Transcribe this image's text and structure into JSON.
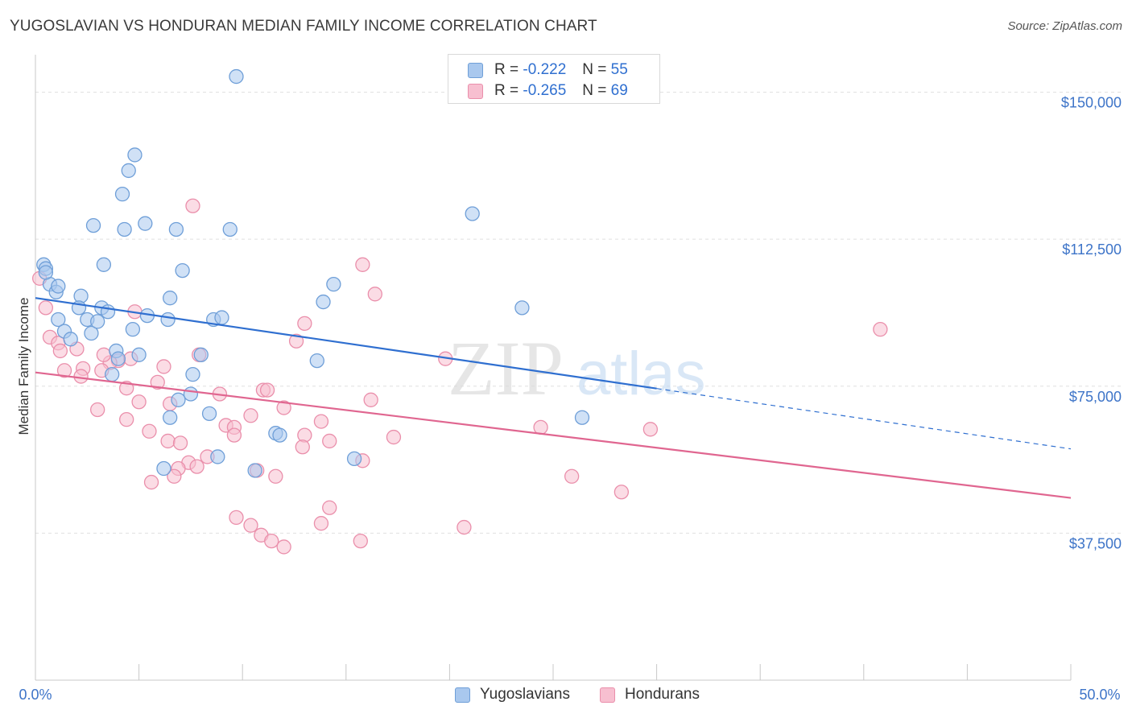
{
  "title": "YUGOSLAVIAN VS HONDURAN MEDIAN FAMILY INCOME CORRELATION CHART",
  "source": "Source: ZipAtlas.com",
  "watermark": {
    "zip": "ZIP",
    "atlas": "atlas"
  },
  "legend_top": [
    {
      "r_label": "R =",
      "r_value": "-0.222",
      "n_label": "N =",
      "n_value": "55"
    },
    {
      "r_label": "R =",
      "r_value": "-0.265",
      "n_label": "N =",
      "n_value": "69"
    }
  ],
  "legend_bottom": [
    {
      "label": "Yugoslavians"
    },
    {
      "label": "Hondurans"
    }
  ],
  "colors": {
    "yugo_fill": "#a9c8ee",
    "yugo_stroke": "#6f9fd8",
    "yugo_line": "#2f6fd0",
    "hond_fill": "#f7bfd0",
    "hond_stroke": "#ea8fab",
    "hond_line": "#e06690",
    "tick_text": "#3d74c8",
    "grid": "#e0e0e0"
  },
  "chart_data": {
    "type": "scatter",
    "title": "YUGOSLAVIAN VS HONDURAN MEDIAN FAMILY INCOME CORRELATION CHART",
    "xlabel": "",
    "ylabel": "Median Family Income",
    "xlim": [
      0,
      50
    ],
    "ylim": [
      0,
      157500
    ],
    "x_tick_labels": [
      "0.0%",
      "50.0%"
    ],
    "y_ticks": [
      37500,
      75000,
      112500,
      150000
    ],
    "y_tick_labels": [
      "$37,500",
      "$75,000",
      "$112,500",
      "$150,000"
    ],
    "legend_position": "top-center",
    "grid": true,
    "series": [
      {
        "name": "Yugoslavians",
        "r": -0.222,
        "n": 55,
        "trend": {
          "x0": 0,
          "y0": 97500,
          "x_solid_end": 30,
          "x1": 50,
          "y1": 59000
        },
        "points": [
          [
            9.7,
            154000
          ],
          [
            4.8,
            134000
          ],
          [
            4.5,
            130000
          ],
          [
            4.2,
            124000
          ],
          [
            21.1,
            119000
          ],
          [
            2.8,
            116000
          ],
          [
            5.3,
            116500
          ],
          [
            4.3,
            115000
          ],
          [
            6.8,
            115000
          ],
          [
            9.4,
            115000
          ],
          [
            0.4,
            106000
          ],
          [
            0.5,
            105000
          ],
          [
            3.3,
            106000
          ],
          [
            7.1,
            104500
          ],
          [
            0.7,
            101000
          ],
          [
            14.4,
            101000
          ],
          [
            1.0,
            99000
          ],
          [
            2.2,
            98000
          ],
          [
            6.5,
            97500
          ],
          [
            13.9,
            96500
          ],
          [
            2.1,
            95000
          ],
          [
            3.2,
            95000
          ],
          [
            3.5,
            94000
          ],
          [
            23.5,
            95000
          ],
          [
            5.4,
            93000
          ],
          [
            6.4,
            92000
          ],
          [
            8.6,
            92000
          ],
          [
            9.0,
            92500
          ],
          [
            1.1,
            92000
          ],
          [
            2.5,
            92000
          ],
          [
            1.4,
            89000
          ],
          [
            2.7,
            88500
          ],
          [
            4.7,
            89500
          ],
          [
            1.7,
            87000
          ],
          [
            3.9,
            84000
          ],
          [
            5.0,
            83000
          ],
          [
            8.0,
            83000
          ],
          [
            13.6,
            81500
          ],
          [
            3.7,
            78000
          ],
          [
            7.6,
            78000
          ],
          [
            7.5,
            73000
          ],
          [
            6.9,
            71500
          ],
          [
            8.4,
            68000
          ],
          [
            6.5,
            67000
          ],
          [
            26.4,
            67000
          ],
          [
            11.6,
            63000
          ],
          [
            11.8,
            62500
          ],
          [
            8.8,
            57000
          ],
          [
            15.4,
            56500
          ],
          [
            6.2,
            54000
          ],
          [
            10.6,
            53500
          ],
          [
            0.5,
            104000
          ],
          [
            1.1,
            100500
          ],
          [
            3.0,
            91500
          ],
          [
            4.0,
            82000
          ]
        ]
      },
      {
        "name": "Hondurans",
        "r": -0.265,
        "n": 69,
        "trend": {
          "x0": 0,
          "y0": 78500,
          "x1": 50,
          "y1": 46500
        },
        "points": [
          [
            7.6,
            121000
          ],
          [
            15.8,
            106000
          ],
          [
            16.4,
            98500
          ],
          [
            0.5,
            95000
          ],
          [
            4.8,
            94000
          ],
          [
            13.0,
            91000
          ],
          [
            40.8,
            89500
          ],
          [
            0.7,
            87500
          ],
          [
            12.6,
            86500
          ],
          [
            1.1,
            86000
          ],
          [
            2.0,
            84500
          ],
          [
            1.2,
            84000
          ],
          [
            7.9,
            83000
          ],
          [
            4.0,
            81500
          ],
          [
            4.6,
            82000
          ],
          [
            3.6,
            81000
          ],
          [
            19.8,
            82000
          ],
          [
            6.2,
            80000
          ],
          [
            1.4,
            79000
          ],
          [
            2.3,
            79500
          ],
          [
            3.2,
            79000
          ],
          [
            2.2,
            77500
          ],
          [
            5.9,
            76000
          ],
          [
            4.4,
            74500
          ],
          [
            11.0,
            74000
          ],
          [
            11.2,
            74000
          ],
          [
            8.9,
            73000
          ],
          [
            16.2,
            71500
          ],
          [
            5.0,
            71000
          ],
          [
            6.5,
            70500
          ],
          [
            12.0,
            69500
          ],
          [
            3.0,
            69000
          ],
          [
            10.4,
            67500
          ],
          [
            4.4,
            66500
          ],
          [
            13.8,
            66000
          ],
          [
            9.2,
            65000
          ],
          [
            9.6,
            64500
          ],
          [
            24.4,
            64500
          ],
          [
            29.7,
            64000
          ],
          [
            5.5,
            63500
          ],
          [
            9.6,
            62500
          ],
          [
            13.0,
            62500
          ],
          [
            17.3,
            62000
          ],
          [
            6.4,
            61000
          ],
          [
            7.0,
            60500
          ],
          [
            14.2,
            61000
          ],
          [
            12.9,
            59500
          ],
          [
            8.3,
            57000
          ],
          [
            15.8,
            56000
          ],
          [
            7.4,
            55500
          ],
          [
            6.9,
            54000
          ],
          [
            7.8,
            54500
          ],
          [
            10.7,
            53500
          ],
          [
            25.9,
            52000
          ],
          [
            11.6,
            52000
          ],
          [
            5.6,
            50500
          ],
          [
            6.7,
            52000
          ],
          [
            28.3,
            48000
          ],
          [
            14.2,
            44000
          ],
          [
            9.7,
            41500
          ],
          [
            10.4,
            39500
          ],
          [
            13.8,
            40000
          ],
          [
            20.7,
            39000
          ],
          [
            10.9,
            37000
          ],
          [
            15.7,
            35500
          ],
          [
            11.4,
            35500
          ],
          [
            12.0,
            34000
          ],
          [
            0.2,
            102500
          ],
          [
            3.3,
            83000
          ]
        ]
      }
    ]
  }
}
